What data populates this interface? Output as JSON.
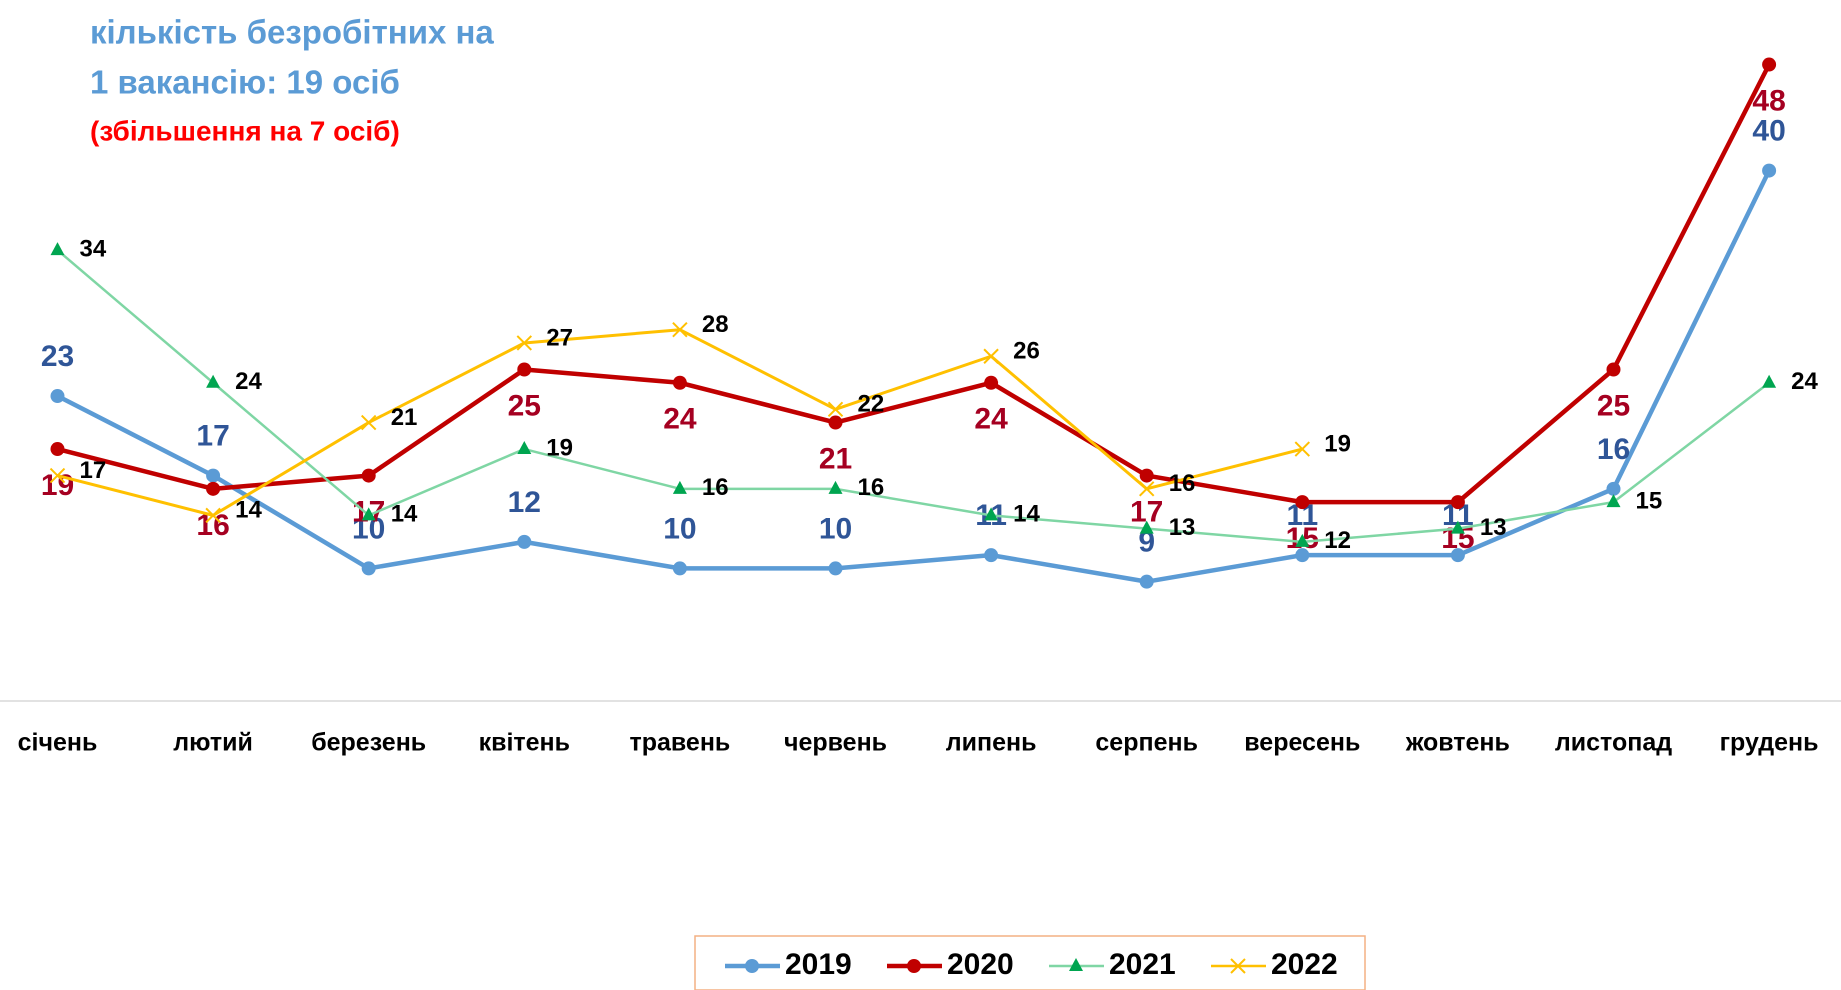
{
  "chart_data": {
    "type": "line",
    "title": "кількість безробітних на",
    "subtitle": "1 вакансію: 19 осіб",
    "annotation": "(збільшення на 7 осіб)",
    "categories": [
      "січень",
      "лютий",
      "березень",
      "квітень",
      "травень",
      "червень",
      "липень",
      "серпень",
      "вересень",
      "жовтень",
      "листопад",
      "грудень"
    ],
    "series": [
      {
        "name": "2019",
        "color": "#5b9bd5",
        "label_color": "#2f5597",
        "marker": "circle",
        "values": [
          23,
          17,
          10,
          12,
          10,
          10,
          11,
          9,
          11,
          11,
          16,
          40
        ]
      },
      {
        "name": "2020",
        "color": "#c00000",
        "label_color": "#a50021",
        "marker": "circle",
        "values": [
          19,
          16,
          17,
          25,
          24,
          21,
          24,
          17,
          15,
          15,
          25,
          48
        ]
      },
      {
        "name": "2021",
        "color": "#7fd6a4",
        "label_color": "#000000",
        "marker": "triangle",
        "values": [
          34,
          24,
          14,
          19,
          16,
          16,
          14,
          13,
          12,
          13,
          15,
          24
        ]
      },
      {
        "name": "2022",
        "color": "#ffc000",
        "label_color": "#000000",
        "marker": "x",
        "values": [
          17,
          14,
          21,
          27,
          28,
          22,
          26,
          16,
          19,
          null,
          null,
          null
        ]
      }
    ],
    "ylim": [
      0,
      50
    ],
    "legend": "bottom"
  }
}
